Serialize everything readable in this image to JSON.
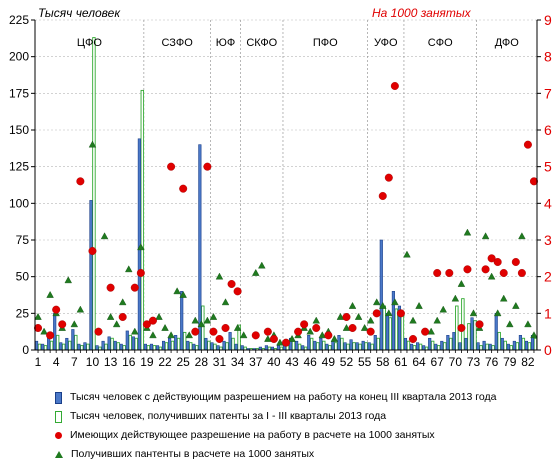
{
  "chart_data": {
    "type": "bar",
    "y_left_label": "Тысяч человек",
    "y_right_label": "На 1000 занятых",
    "ylim_left": [
      0,
      225
    ],
    "ylim_right": [
      0,
      9
    ],
    "y_left_ticks": [
      0,
      25,
      50,
      75,
      100,
      125,
      150,
      175,
      200,
      225
    ],
    "y_right_ticks": [
      0,
      1,
      2,
      3,
      4,
      5,
      6,
      7,
      8,
      9
    ],
    "x_ticks": [
      "1",
      "4",
      "7",
      "10",
      "13",
      "16",
      "19",
      "22",
      "25",
      "28",
      "31",
      "34",
      "37",
      "40",
      "43",
      "46",
      "49",
      "52",
      "55",
      "58",
      "61",
      "64",
      "67",
      "70",
      "73",
      "76",
      "79",
      "82"
    ],
    "x_range": [
      1,
      83
    ],
    "regions": [
      {
        "label": "ЦФО",
        "start": 1,
        "end": 18
      },
      {
        "label": "СЗФО",
        "start": 19,
        "end": 29
      },
      {
        "label": "ЮФ",
        "start": 30,
        "end": 34
      },
      {
        "label": "СКФО",
        "start": 35,
        "end": 41
      },
      {
        "label": "ПФО",
        "start": 42,
        "end": 55
      },
      {
        "label": "УФО",
        "start": 56,
        "end": 61
      },
      {
        "label": "СФО",
        "start": 62,
        "end": 73
      },
      {
        "label": "ДФО",
        "start": 74,
        "end": 83
      }
    ],
    "series": [
      {
        "name": "Тысяч человек с действующим разрешением  на работу на конец  III   квартала 2013 года",
        "axis": "left",
        "kind": "bar",
        "color": "#4a78c8",
        "values": [
          6,
          4,
          8,
          25,
          5,
          8,
          14,
          4,
          5,
          102,
          3,
          6,
          9,
          6,
          4,
          13,
          9,
          144,
          4,
          4,
          3,
          6,
          8,
          10,
          40,
          6,
          4,
          140,
          8,
          5,
          3,
          6,
          12,
          4,
          3,
          1,
          1,
          2,
          3,
          2,
          3,
          5,
          8,
          6,
          3,
          10,
          6,
          8,
          4,
          6,
          10,
          5,
          7,
          5,
          6,
          5,
          10,
          75,
          25,
          40,
          30,
          8,
          4,
          5,
          3,
          8,
          4,
          6,
          10,
          12,
          5,
          8,
          22,
          5,
          6,
          4,
          25,
          8,
          4,
          6,
          10,
          6,
          10
        ]
      },
      {
        "name": "Тысяч человек, получивших патенты за I - III    кварталы 2013 года",
        "axis": "left",
        "kind": "bar",
        "color": "#33aa33",
        "values": [
          4,
          3,
          6,
          10,
          4,
          6,
          10,
          3,
          4,
          213,
          2,
          4,
          8,
          5,
          3,
          10,
          8,
          177,
          3,
          3,
          2,
          5,
          6,
          8,
          12,
          5,
          3,
          30,
          6,
          4,
          2,
          5,
          8,
          17,
          2,
          1,
          1,
          1,
          2,
          1,
          2,
          3,
          6,
          4,
          2,
          8,
          5,
          6,
          3,
          5,
          8,
          4,
          5,
          4,
          5,
          4,
          8,
          30,
          22,
          28,
          25,
          6,
          3,
          4,
          2,
          6,
          3,
          5,
          8,
          30,
          35,
          18,
          20,
          3,
          4,
          3,
          12,
          6,
          3,
          5,
          8,
          5,
          8
        ]
      },
      {
        "name": "Имеющих действующее разрешение  на работу в расчете на 1000 занятых",
        "axis": "right",
        "kind": "point",
        "color": "#e00000",
        "points": [
          [
            1,
            0.6
          ],
          [
            3,
            0.4
          ],
          [
            4,
            1.1
          ],
          [
            5,
            0.7
          ],
          [
            8,
            4.6
          ],
          [
            10,
            2.7
          ],
          [
            11,
            0.5
          ],
          [
            13,
            1.7
          ],
          [
            15,
            0.9
          ],
          [
            17,
            1.7
          ],
          [
            18,
            2.1
          ],
          [
            19,
            0.7
          ],
          [
            20,
            0.8
          ],
          [
            23,
            5.0
          ],
          [
            25,
            4.4
          ],
          [
            27,
            0.5
          ],
          [
            29,
            5.0
          ],
          [
            30,
            0.5
          ],
          [
            31,
            0.3
          ],
          [
            32,
            0.6
          ],
          [
            33,
            1.8
          ],
          [
            34,
            1.6
          ],
          [
            37,
            0.4
          ],
          [
            39,
            0.5
          ],
          [
            40,
            0.3
          ],
          [
            42,
            0.2
          ],
          [
            44,
            0.5
          ],
          [
            45,
            0.7
          ],
          [
            47,
            0.6
          ],
          [
            49,
            0.4
          ],
          [
            52,
            0.9
          ],
          [
            53,
            0.6
          ],
          [
            56,
            0.5
          ],
          [
            57,
            1.0
          ],
          [
            58,
            4.2
          ],
          [
            59,
            4.7
          ],
          [
            60,
            7.2
          ],
          [
            61,
            1.0
          ],
          [
            63,
            0.3
          ],
          [
            65,
            0.5
          ],
          [
            67,
            2.1
          ],
          [
            69,
            2.1
          ],
          [
            71,
            0.6
          ],
          [
            72,
            2.2
          ],
          [
            74,
            0.7
          ],
          [
            75,
            2.2
          ],
          [
            76,
            2.5
          ],
          [
            77,
            2.4
          ],
          [
            78,
            2.1
          ],
          [
            80,
            2.4
          ],
          [
            81,
            2.1
          ],
          [
            82,
            5.6
          ],
          [
            83,
            4.6
          ]
        ]
      },
      {
        "name": "Получивших пантенты в расчете на 1000 занятых",
        "axis": "right",
        "kind": "point",
        "color": "#1f7a1f",
        "points": [
          [
            1,
            0.9
          ],
          [
            2,
            0.5
          ],
          [
            3,
            1.5
          ],
          [
            4,
            1.0
          ],
          [
            5,
            0.6
          ],
          [
            6,
            1.9
          ],
          [
            7,
            0.7
          ],
          [
            8,
            1.1
          ],
          [
            10,
            5.6
          ],
          [
            12,
            3.1
          ],
          [
            13,
            0.9
          ],
          [
            14,
            0.7
          ],
          [
            15,
            1.3
          ],
          [
            16,
            2.2
          ],
          [
            17,
            0.5
          ],
          [
            18,
            2.8
          ],
          [
            19,
            0.6
          ],
          [
            20,
            0.4
          ],
          [
            21,
            0.9
          ],
          [
            22,
            0.6
          ],
          [
            23,
            0.4
          ],
          [
            24,
            1.6
          ],
          [
            25,
            1.5
          ],
          [
            26,
            0.4
          ],
          [
            27,
            0.8
          ],
          [
            28,
            0.7
          ],
          [
            29,
            0.8
          ],
          [
            30,
            0.9
          ],
          [
            31,
            2.0
          ],
          [
            32,
            1.3
          ],
          [
            34,
            0.6
          ],
          [
            35,
            0.4
          ],
          [
            37,
            2.1
          ],
          [
            38,
            2.3
          ],
          [
            39,
            0.3
          ],
          [
            40,
            0.4
          ],
          [
            41,
            0.2
          ],
          [
            43,
            0.3
          ],
          [
            44,
            0.4
          ],
          [
            45,
            0.6
          ],
          [
            46,
            0.5
          ],
          [
            47,
            0.8
          ],
          [
            48,
            0.4
          ],
          [
            49,
            0.5
          ],
          [
            50,
            0.3
          ],
          [
            51,
            0.9
          ],
          [
            52,
            0.6
          ],
          [
            53,
            1.2
          ],
          [
            54,
            0.9
          ],
          [
            55,
            0.6
          ],
          [
            56,
            0.8
          ],
          [
            57,
            1.3
          ],
          [
            58,
            1.2
          ],
          [
            59,
            1.0
          ],
          [
            60,
            1.3
          ],
          [
            61,
            1.0
          ],
          [
            62,
            2.6
          ],
          [
            63,
            0.8
          ],
          [
            64,
            1.2
          ],
          [
            66,
            0.5
          ],
          [
            67,
            0.8
          ],
          [
            68,
            1.1
          ],
          [
            70,
            1.4
          ],
          [
            71,
            1.8
          ],
          [
            72,
            3.2
          ],
          [
            73,
            1.0
          ],
          [
            74,
            0.6
          ],
          [
            75,
            3.1
          ],
          [
            76,
            2.0
          ],
          [
            77,
            1.0
          ],
          [
            78,
            1.4
          ],
          [
            79,
            0.7
          ],
          [
            80,
            1.2
          ],
          [
            81,
            3.1
          ],
          [
            82,
            0.7
          ],
          [
            83,
            0.4
          ]
        ]
      }
    ]
  }
}
